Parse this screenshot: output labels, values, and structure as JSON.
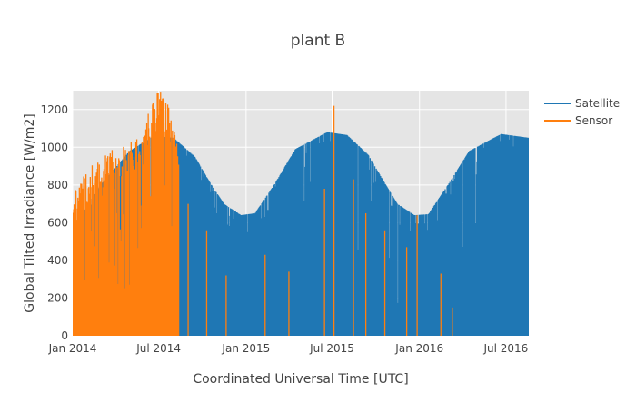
{
  "chart_data": {
    "type": "line",
    "title": "plant B",
    "xlabel": "Coordinated Universal Time [UTC]",
    "ylabel": "Global Tilted Irradiance [W/m2]",
    "x_range": [
      "2014-01-01",
      "2016-08-18"
    ],
    "ylim": [
      0,
      1300
    ],
    "x_ticks": [
      {
        "date": "2014-01-01",
        "label": "Jan 2014"
      },
      {
        "date": "2014-07-01",
        "label": "Jul 2014"
      },
      {
        "date": "2015-01-01",
        "label": "Jan 2015"
      },
      {
        "date": "2015-07-01",
        "label": "Jul 2015"
      },
      {
        "date": "2016-01-01",
        "label": "Jan 2016"
      },
      {
        "date": "2016-07-01",
        "label": "Jul 2016"
      }
    ],
    "y_ticks": [
      0,
      200,
      400,
      600,
      800,
      1000,
      1200
    ],
    "grid": true,
    "legend_position": "top-right",
    "series": [
      {
        "name": "Satellite",
        "color": "#1f77b4",
        "daily_peak_envelope": {
          "x": [
            "2014-01-01",
            "2014-03-01",
            "2014-05-01",
            "2014-06-21",
            "2014-08-01",
            "2014-09-15",
            "2014-10-15",
            "2014-11-15",
            "2014-12-21",
            "2015-01-20",
            "2015-03-01",
            "2015-04-15",
            "2015-06-21",
            "2015-08-01",
            "2015-09-15",
            "2015-10-15",
            "2015-11-15",
            "2015-12-21",
            "2016-01-20",
            "2016-03-01",
            "2016-04-15",
            "2016-06-21",
            "2016-08-18"
          ],
          "y": [
            560,
            800,
            980,
            1060,
            1050,
            950,
            820,
            700,
            640,
            650,
            800,
            990,
            1080,
            1065,
            960,
            830,
            700,
            640,
            645,
            800,
            980,
            1070,
            1050
          ]
        }
      },
      {
        "name": "Sensor",
        "color": "#ff7f0e",
        "daily_peak_envelope": {
          "x": [
            "2014-01-01",
            "2014-01-15",
            "2014-02-01",
            "2014-03-01",
            "2014-04-01",
            "2014-05-01",
            "2014-06-01",
            "2014-06-21",
            "2014-07-15",
            "2014-08-01",
            "2014-08-12"
          ],
          "y": [
            760,
            820,
            880,
            950,
            1000,
            1030,
            1100,
            1300,
            1300,
            1120,
            1000
          ]
        },
        "extra_spikes": {
          "x": [
            "2014-09-01",
            "2014-10-10",
            "2014-11-20",
            "2015-02-10",
            "2015-04-01",
            "2015-06-15",
            "2015-07-05",
            "2015-08-15",
            "2015-09-10",
            "2015-10-20",
            "2015-12-05",
            "2015-12-27",
            "2016-02-15",
            "2016-03-10"
          ],
          "y": [
            700,
            560,
            320,
            430,
            340,
            780,
            1220,
            830,
            650,
            560,
            470,
            640,
            330,
            150
          ]
        }
      }
    ]
  }
}
